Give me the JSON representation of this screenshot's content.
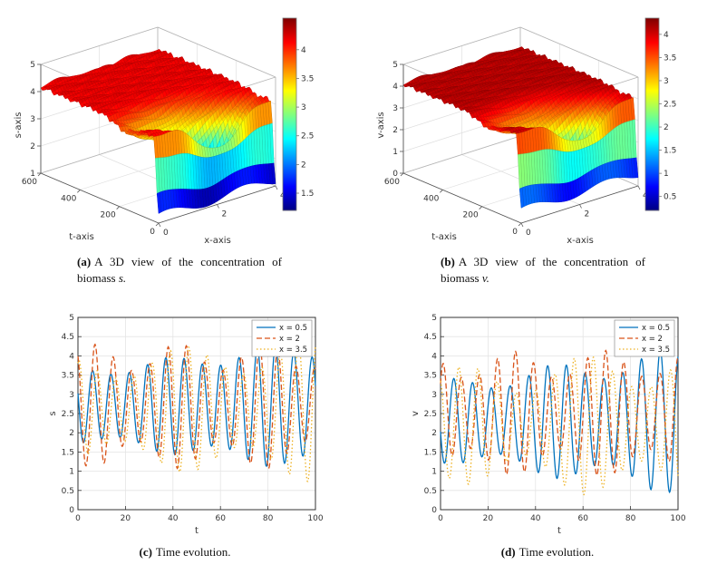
{
  "chart_data": [
    {
      "id": "a",
      "type": "surface",
      "caption_label": "(a)",
      "caption_text": "A 3D view of the concentration of biomass",
      "caption_math": "s.",
      "xlabel": "x-axis",
      "tlabel": "t-axis",
      "zlabel": "s-axis",
      "xlim": [
        0,
        4
      ],
      "tlim": [
        0,
        600
      ],
      "zlim": [
        1,
        5
      ],
      "xticks": [
        0,
        2,
        4
      ],
      "tticks": [
        0,
        200,
        400,
        600
      ],
      "zticks": [
        1,
        2,
        3,
        4,
        5
      ],
      "clim": [
        1.2,
        4.55
      ],
      "colorbar_ticks": [
        1.5,
        2,
        2.5,
        3,
        3.5,
        4
      ],
      "surface": {
        "plateau": 4.18,
        "ripple_amp": 0.07,
        "ripple_ft": 0.22,
        "ripple_fx": 2.6,
        "valley_t0": 75,
        "valley_x0": 2.2,
        "valley_st": 55,
        "valley_sx": 1.05,
        "valley_depth": 2.7,
        "init_base": 1.05,
        "init_amp": 0.35,
        "rise_t": 26
      }
    },
    {
      "id": "b",
      "type": "surface",
      "caption_label": "(b)",
      "caption_text": "A 3D view of the concentration of biomass",
      "caption_math": "v.",
      "xlabel": "x-axis",
      "tlabel": "t-axis",
      "zlabel": "v-axis",
      "xlim": [
        0,
        4
      ],
      "tlim": [
        0,
        600
      ],
      "zlim": [
        0,
        5
      ],
      "xticks": [
        0,
        2,
        4
      ],
      "tticks": [
        0,
        200,
        400,
        600
      ],
      "zticks": [
        0,
        1,
        2,
        3,
        4,
        5
      ],
      "clim": [
        0.2,
        4.35
      ],
      "colorbar_ticks": [
        0.5,
        1,
        1.5,
        2,
        2.5,
        3,
        3.5,
        4
      ],
      "surface": {
        "plateau": 4.1,
        "ripple_amp": 0.07,
        "ripple_ft": 0.22,
        "ripple_fx": 2.6,
        "valley_t0": 75,
        "valley_x0": 2.2,
        "valley_st": 55,
        "valley_sx": 1.05,
        "valley_depth": 2.9,
        "init_base": 0.35,
        "init_amp": 0.4,
        "rise_t": 26
      }
    },
    {
      "id": "c",
      "type": "line",
      "caption_label": "(c)",
      "caption_text": "Time evolution.",
      "xlabel": "t",
      "ylabel": "s",
      "xlim": [
        0,
        100
      ],
      "ylim": [
        0,
        5
      ],
      "xticks": [
        0,
        20,
        40,
        60,
        80,
        100
      ],
      "yticks": [
        0,
        0.5,
        1,
        1.5,
        2,
        2.5,
        3,
        3.5,
        4,
        4.5,
        5
      ],
      "legend_position": "top-right",
      "grid": true,
      "series": [
        {
          "label": "x = 0.5",
          "color": "#0072BD",
          "style": "solid",
          "mean": 2.7,
          "amp0": 0.85,
          "amp1": 1.5,
          "period": 7.7,
          "phase": 2.8,
          "mod_period": 41,
          "mod_depth": 0.15,
          "mod_phase": 2.0
        },
        {
          "label": "x = 2",
          "color": "#D95319",
          "style": "dashed",
          "mean": 2.7,
          "amp0": 1.25,
          "amp1": 1.3,
          "period": 7.7,
          "phase": 2.0,
          "mod_period": 36,
          "mod_depth": 0.28,
          "mod_phase": 0.5
        },
        {
          "label": "x = 3.5",
          "color": "#EDB120",
          "style": "dotted",
          "mean": 2.6,
          "amp0": 1.1,
          "amp1": 1.45,
          "period": 7.7,
          "phase": 1.2,
          "mod_period": 52,
          "mod_depth": 0.3,
          "mod_phase": 2.5
        }
      ]
    },
    {
      "id": "d",
      "type": "line",
      "caption_label": "(d)",
      "caption_text": "Time evolution.",
      "xlabel": "t",
      "ylabel": "v",
      "xlim": [
        0,
        100
      ],
      "ylim": [
        0,
        5
      ],
      "xticks": [
        0,
        20,
        40,
        60,
        80,
        100
      ],
      "yticks": [
        0,
        0.5,
        1,
        1.5,
        2,
        2.5,
        3,
        3.5,
        4,
        4.5,
        5
      ],
      "legend_position": "top-right",
      "grid": true,
      "series": [
        {
          "label": "x = 0.5",
          "color": "#0072BD",
          "style": "solid",
          "mean": 2.3,
          "amp0": 0.9,
          "amp1": 1.6,
          "period": 7.9,
          "phase": 3.4,
          "mod_period": 45,
          "mod_depth": 0.2,
          "mod_phase": 1.2
        },
        {
          "label": "x = 2",
          "color": "#D95319",
          "style": "dashed",
          "mean": 2.5,
          "amp0": 1.25,
          "amp1": 1.3,
          "period": 7.6,
          "phase": 0.6,
          "mod_period": 38,
          "mod_depth": 0.28,
          "mod_phase": 2.8
        },
        {
          "label": "x = 3.5",
          "color": "#EDB120",
          "style": "dotted",
          "mean": 2.2,
          "amp0": 1.1,
          "amp1": 1.5,
          "period": 8.1,
          "phase": 1.9,
          "mod_period": 50,
          "mod_depth": 0.35,
          "mod_phase": 0.3
        }
      ]
    }
  ],
  "colors": {
    "series_blue": "#0072BD",
    "series_red": "#D95319",
    "series_yellow": "#EDB120",
    "grid": "#e4e4e4",
    "axis": "#404040"
  }
}
